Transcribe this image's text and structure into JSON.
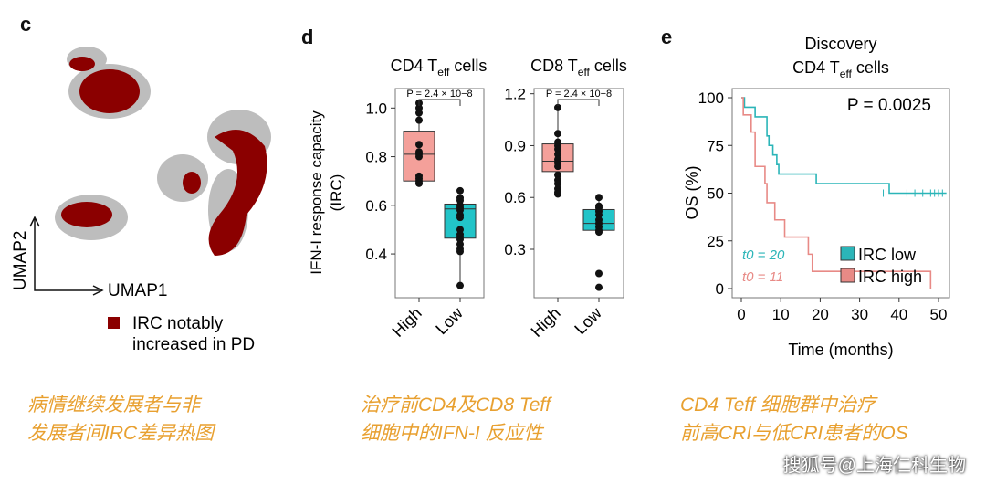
{
  "panels": {
    "c": "c",
    "d": "d",
    "e": "e"
  },
  "umap": {
    "xlabel": "UMAP1",
    "ylabel": "UMAP2",
    "legend_line1": "IRC notably",
    "legend_line2": "increased in PD",
    "legend_color": "#8b0000",
    "background_color": "#bdbdbd"
  },
  "chart_data": [
    {
      "type": "box",
      "title": "CD4 Teff cells",
      "ylabel": "IFN-I response capacity (IRC)",
      "ylim": [
        0.22,
        1.08
      ],
      "yticks": [
        0.4,
        0.6,
        0.8,
        1.0
      ],
      "categories": [
        "High",
        "Low"
      ],
      "annotation": "P = 2.4 × 10−8",
      "boxes": [
        {
          "category": "High",
          "q1": 0.7,
          "median": 0.81,
          "q3": 0.905,
          "whisker_low": 0.69,
          "whisker_high": 1.02,
          "color": "#f4a09a",
          "points": [
            1.02,
            1.0,
            0.98,
            0.95,
            0.85,
            0.82,
            0.81,
            0.8,
            0.72,
            0.71,
            0.7,
            0.69
          ]
        },
        {
          "category": "Low",
          "q1": 0.465,
          "median": 0.585,
          "q3": 0.605,
          "whisker_low": 0.27,
          "whisker_high": 0.66,
          "color": "#22c4c8",
          "points": [
            0.66,
            0.63,
            0.62,
            0.6,
            0.59,
            0.58,
            0.56,
            0.55,
            0.5,
            0.48,
            0.47,
            0.46,
            0.44,
            0.42,
            0.41,
            0.27
          ]
        }
      ]
    },
    {
      "type": "box",
      "title": "CD8 Teff cells",
      "ylim": [
        0.02,
        1.23
      ],
      "yticks": [
        0.3,
        0.6,
        0.9,
        1.2
      ],
      "categories": [
        "High",
        "Low"
      ],
      "annotation": "P = 2.4 × 10−8",
      "boxes": [
        {
          "category": "High",
          "q1": 0.75,
          "median": 0.81,
          "q3": 0.91,
          "whisker_low": 0.62,
          "whisker_high": 1.12,
          "color": "#f4a09a",
          "points": [
            1.12,
            0.97,
            0.92,
            0.9,
            0.88,
            0.85,
            0.82,
            0.8,
            0.78,
            0.73,
            0.7,
            0.68,
            0.65,
            0.63,
            0.62
          ]
        },
        {
          "category": "Low",
          "q1": 0.41,
          "median": 0.45,
          "q3": 0.53,
          "whisker_low": 0.4,
          "whisker_high": 0.6,
          "color": "#22c4c8",
          "points": [
            0.6,
            0.55,
            0.54,
            0.52,
            0.5,
            0.47,
            0.45,
            0.43,
            0.41,
            0.4,
            0.16,
            0.08
          ]
        }
      ]
    },
    {
      "type": "line",
      "subtype": "kaplan-meier",
      "title_line1": "Discovery",
      "title_line2": "CD4 Teff cells",
      "xlabel": "Time (months)",
      "ylabel": "OS (%)",
      "xlim": [
        -2,
        52
      ],
      "ylim": [
        -5,
        106
      ],
      "xticks": [
        0,
        10,
        20,
        30,
        40,
        50
      ],
      "yticks": [
        0,
        25,
        50,
        75,
        100
      ],
      "annotation": "P = 0.0025",
      "series": [
        {
          "name": "IRC low",
          "color": "#2bb5b8",
          "n_label": "t0 = 20",
          "steps": [
            [
              0,
              100
            ],
            [
              0.8,
              95
            ],
            [
              3.5,
              90
            ],
            [
              6.5,
              80
            ],
            [
              7,
              75
            ],
            [
              8,
              70
            ],
            [
              9,
              65
            ],
            [
              9.5,
              60
            ],
            [
              19,
              55
            ],
            [
              37.5,
              50
            ],
            [
              52,
              50
            ]
          ],
          "censored": [
            36,
            42,
            44,
            46,
            48,
            49,
            50,
            51
          ]
        },
        {
          "name": "IRC high",
          "color": "#e88a86",
          "n_label": "t0 = 11",
          "steps": [
            [
              0,
              100
            ],
            [
              0.5,
              91
            ],
            [
              2.5,
              82
            ],
            [
              3.5,
              64
            ],
            [
              6,
              55
            ],
            [
              6.5,
              45
            ],
            [
              8.5,
              36
            ],
            [
              11,
              27
            ],
            [
              17,
              18
            ],
            [
              18,
              9
            ],
            [
              48,
              9
            ],
            [
              48,
              0
            ]
          ],
          "censored": []
        }
      ]
    }
  ],
  "captions": {
    "c1": "病情继续发展者与非",
    "c2": "发展者间IRC差异热图",
    "d1": "治疗前CD4及CD8 Teff",
    "d2": "细胞中的IFN-I 反应性",
    "e1": "CD4 Teff 细胞群中治疗",
    "e2": "前高CRI与低CRI患者的OS"
  },
  "watermark": "搜狐号@上海仁科生物"
}
